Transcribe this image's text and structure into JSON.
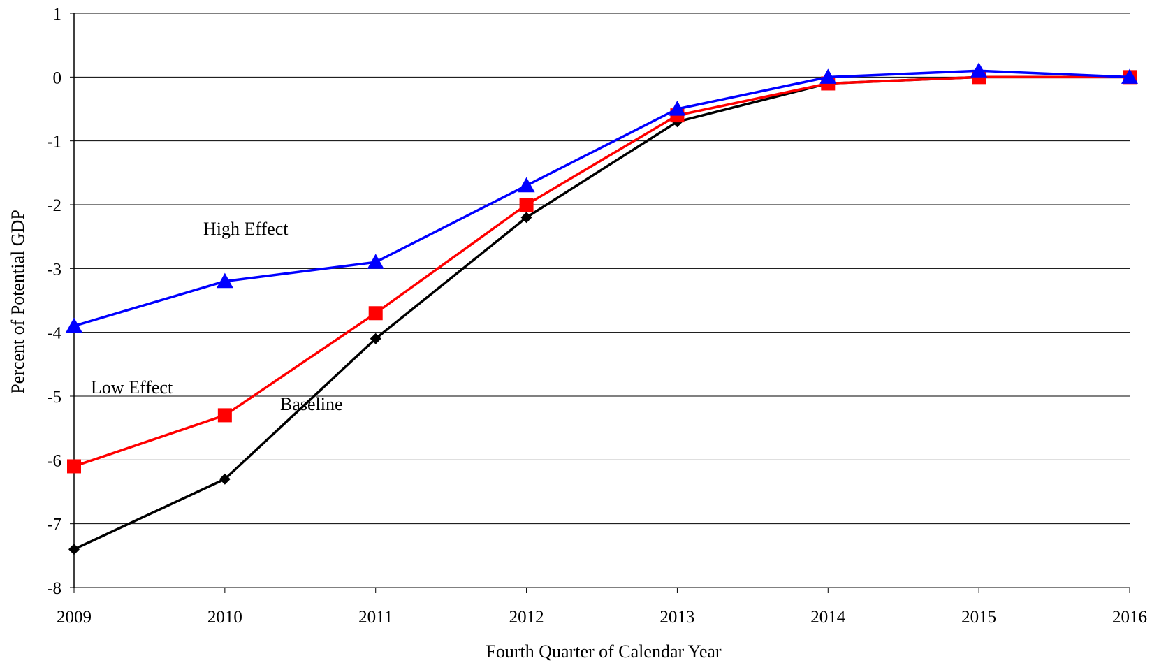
{
  "chart_data": {
    "type": "line",
    "xlabel": "Fourth Quarter of Calendar Year",
    "ylabel": "Percent of Potential GDP",
    "x": [
      2009,
      2010,
      2011,
      2012,
      2013,
      2014,
      2015,
      2016
    ],
    "ylim": [
      -8,
      1
    ],
    "yticks": [
      1,
      0,
      -1,
      -2,
      -3,
      -4,
      -5,
      -6,
      -7,
      -8
    ],
    "grid": "horizontal",
    "legend": "none (series labeled inline)",
    "series": [
      {
        "name": "High Effect",
        "color": "#0000ff",
        "marker": "triangle",
        "values": [
          -3.9,
          -3.2,
          -2.9,
          -1.7,
          -0.5,
          0.0,
          0.1,
          0.0
        ]
      },
      {
        "name": "Low Effect",
        "color": "#ff0000",
        "marker": "square",
        "values": [
          -6.1,
          -5.3,
          -3.7,
          -2.0,
          -0.6,
          -0.1,
          0.0,
          0.0
        ]
      },
      {
        "name": "Baseline",
        "color": "#000000",
        "marker": "diamond",
        "values": [
          -7.4,
          -6.3,
          -4.1,
          -2.2,
          -0.7,
          -0.1,
          0.0,
          0.0
        ]
      }
    ]
  }
}
